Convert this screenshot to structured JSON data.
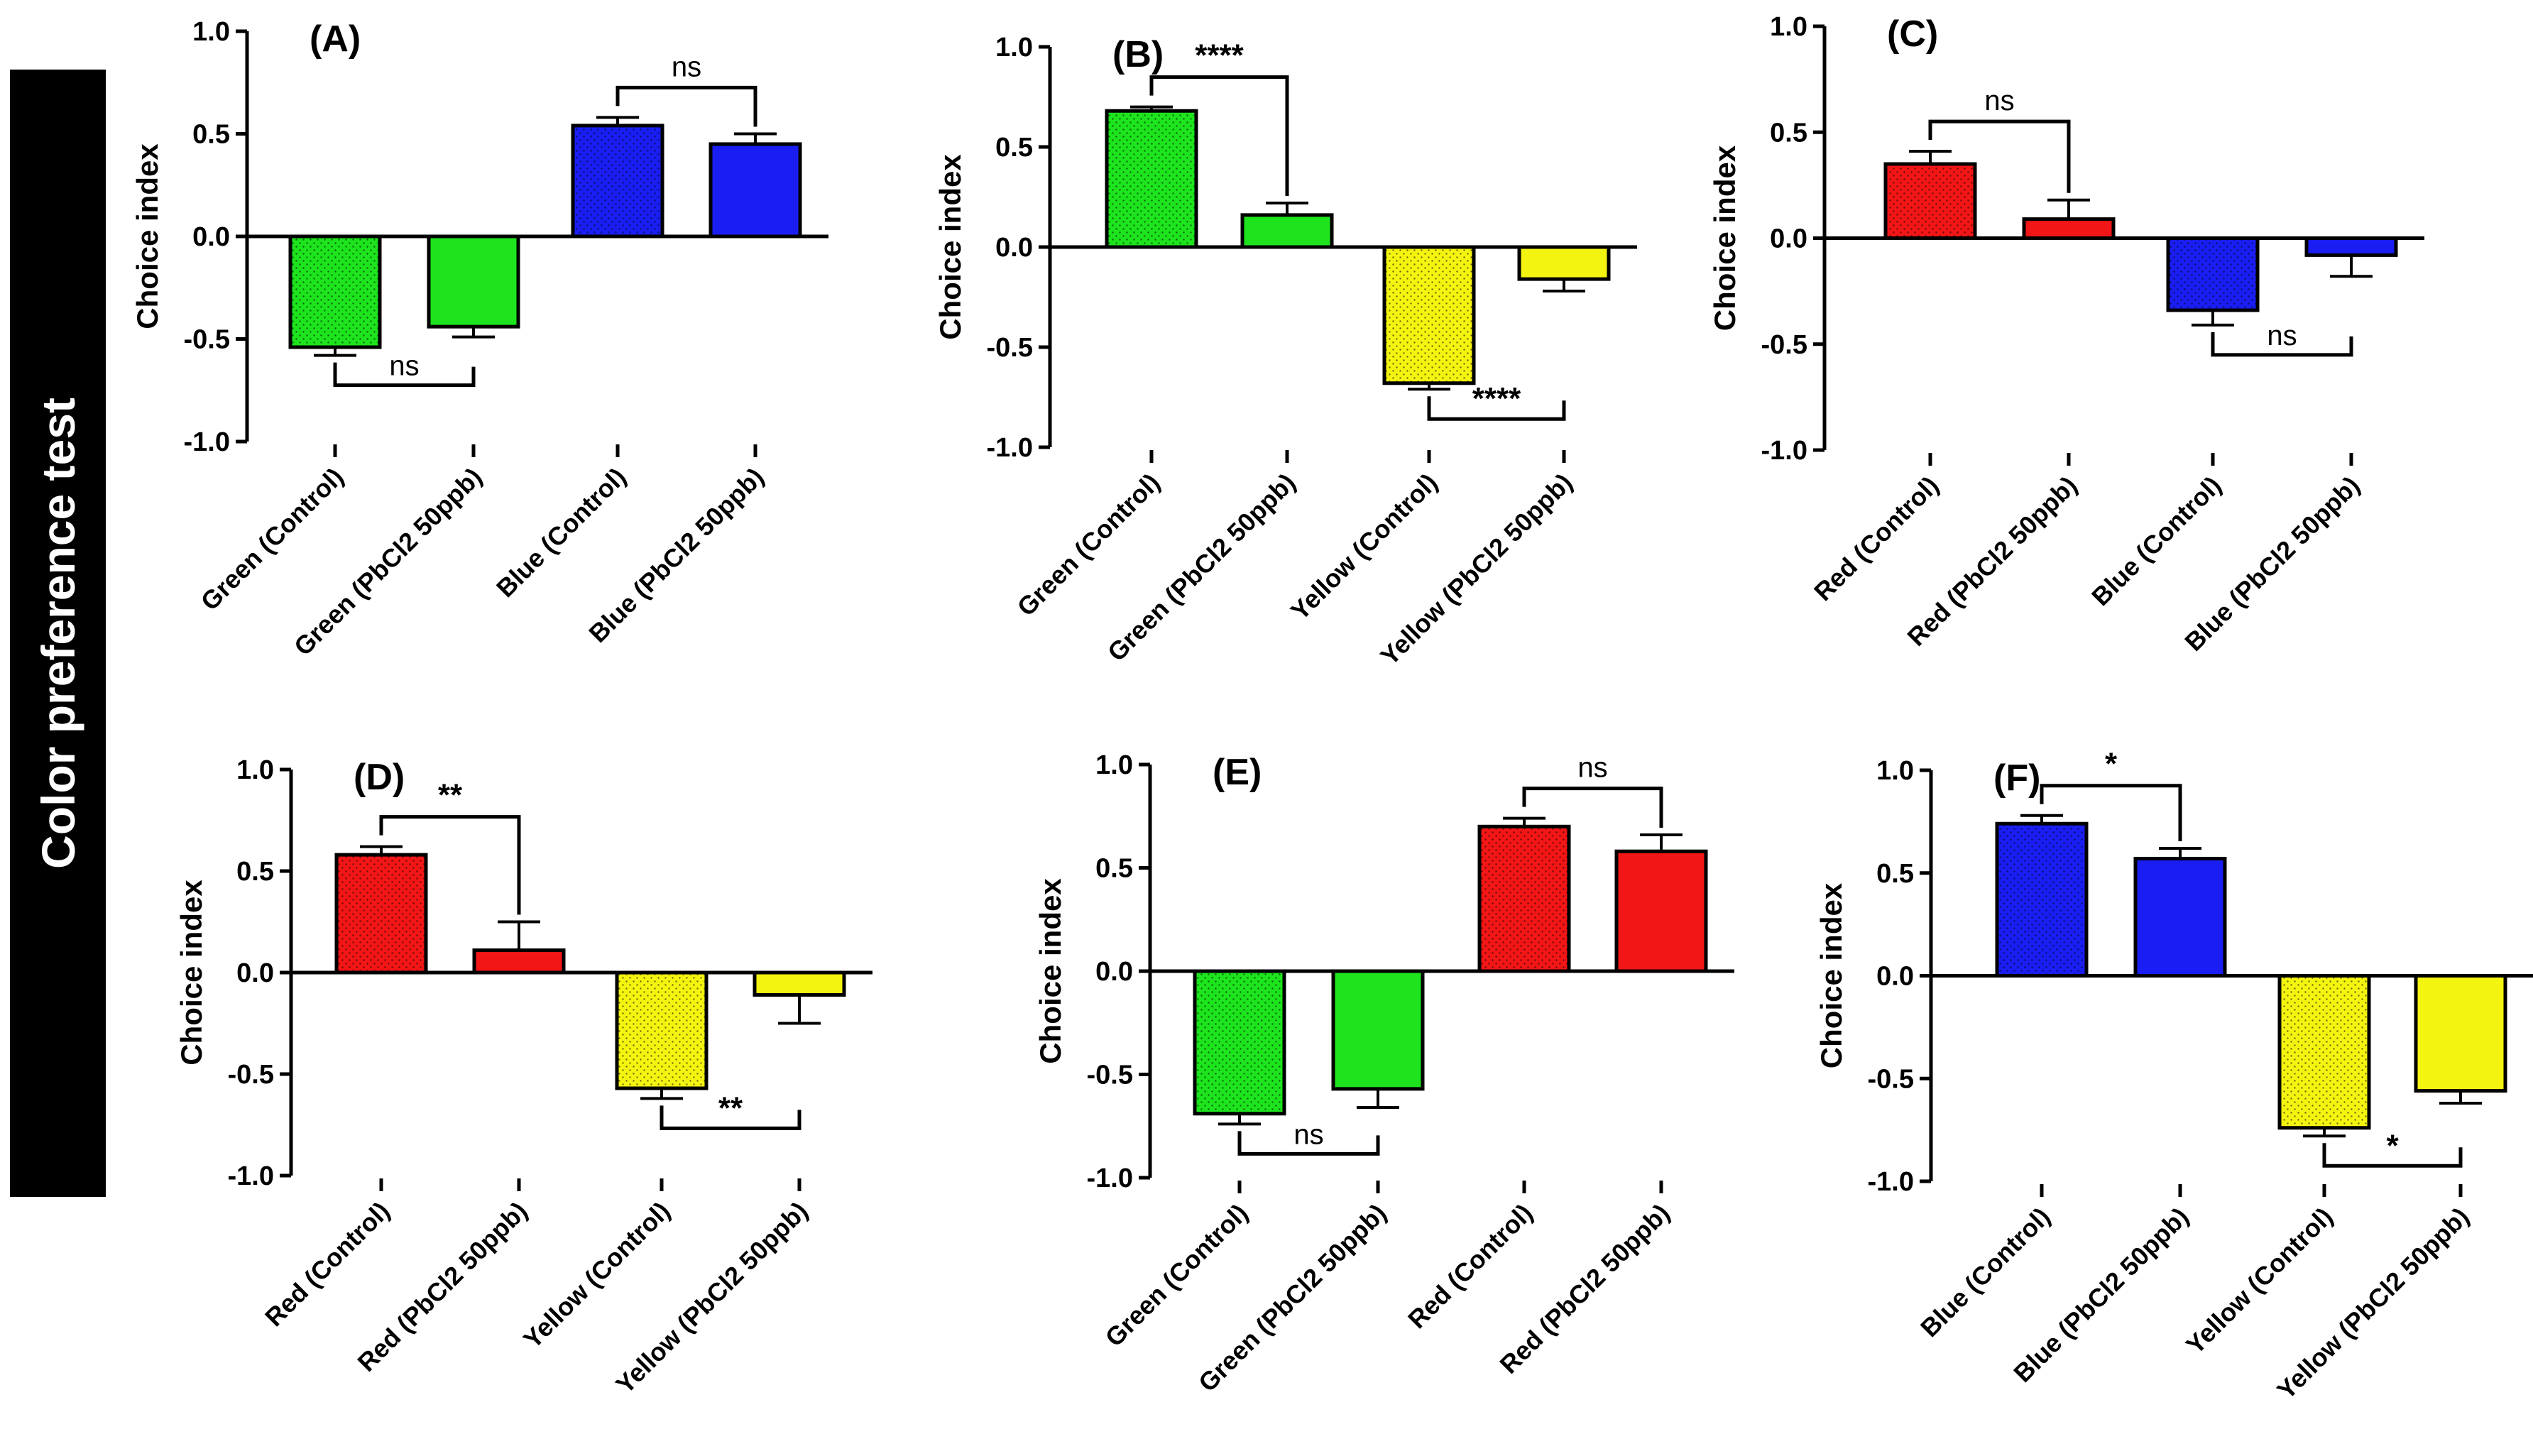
{
  "side_label": "Color preference test",
  "colors": {
    "green": "#1de41d",
    "blue": "#1a1ef2",
    "red": "#f21616",
    "yellow": "#f4f411",
    "axis": "#000000"
  },
  "chart_data": [
    {
      "type": "bar",
      "panel_label": "(A)",
      "ylabel": "Choice index",
      "ylim": [
        -1.0,
        1.0
      ],
      "yticks": [
        "-1.0",
        "-0.5",
        "0.0",
        "0.5",
        "1.0"
      ],
      "ytick_values": [
        -1.0,
        -0.5,
        0.0,
        0.5,
        1.0
      ],
      "categories": [
        "Green (Control)",
        "Green (PbCl2 50ppb)",
        "Blue (Control)",
        "Blue (PbCl2 50ppb)"
      ],
      "values": [
        -0.54,
        -0.44,
        0.54,
        0.45
      ],
      "errors": [
        0.04,
        0.05,
        0.04,
        0.05
      ],
      "bar_colors": [
        "green",
        "green",
        "blue",
        "blue"
      ],
      "dotted": [
        true,
        false,
        true,
        false
      ],
      "significance": [
        {
          "from": 0,
          "to": 1,
          "label": "ns",
          "position": "below"
        },
        {
          "from": 2,
          "to": 3,
          "label": "ns",
          "position": "above"
        }
      ]
    },
    {
      "type": "bar",
      "panel_label": "(B)",
      "ylabel": "Choice index",
      "ylim": [
        -1.0,
        1.0
      ],
      "yticks": [
        "-1.0",
        "-0.5",
        "0.0",
        "0.5",
        "1.0"
      ],
      "ytick_values": [
        -1.0,
        -0.5,
        0.0,
        0.5,
        1.0
      ],
      "categories": [
        "Green (Control)",
        "Green (PbCl2 50ppb)",
        "Yellow (Control)",
        "Yellow (PbCl2 50ppb)"
      ],
      "values": [
        0.68,
        0.16,
        -0.68,
        -0.16
      ],
      "errors": [
        0.02,
        0.06,
        0.03,
        0.06
      ],
      "bar_colors": [
        "green",
        "green",
        "yellow",
        "yellow"
      ],
      "dotted": [
        true,
        false,
        true,
        false
      ],
      "significance": [
        {
          "from": 0,
          "to": 1,
          "label": "****",
          "position": "above"
        },
        {
          "from": 2,
          "to": 3,
          "label": "****",
          "position": "below"
        }
      ]
    },
    {
      "type": "bar",
      "panel_label": "(C)",
      "ylabel": "Choice index",
      "ylim": [
        -1.0,
        1.0
      ],
      "yticks": [
        "-1.0",
        "-0.5",
        "0.0",
        "0.5",
        "1.0"
      ],
      "ytick_values": [
        -1.0,
        -0.5,
        0.0,
        0.5,
        1.0
      ],
      "categories": [
        "Red (Control)",
        "Red (PbCl2 50ppb)",
        "Blue (Control)",
        "Blue (PbCl2 50ppb)"
      ],
      "values": [
        0.35,
        0.09,
        -0.34,
        -0.08
      ],
      "errors": [
        0.06,
        0.09,
        0.07,
        0.1
      ],
      "bar_colors": [
        "red",
        "red",
        "blue",
        "blue"
      ],
      "dotted": [
        true,
        false,
        true,
        false
      ],
      "significance": [
        {
          "from": 0,
          "to": 1,
          "label": "ns",
          "position": "above"
        },
        {
          "from": 2,
          "to": 3,
          "label": "ns",
          "position": "below"
        }
      ]
    },
    {
      "type": "bar",
      "panel_label": "(D)",
      "ylabel": "Choice index",
      "ylim": [
        -1.0,
        1.0
      ],
      "yticks": [
        "-1.0",
        "-0.5",
        "0.0",
        "0.5",
        "1.0"
      ],
      "ytick_values": [
        -1.0,
        -0.5,
        0.0,
        0.5,
        1.0
      ],
      "categories": [
        "Red (Control)",
        "Red (PbCl2 50ppb)",
        "Yellow (Control)",
        "Yellow (PbCl2 50ppb)"
      ],
      "values": [
        0.58,
        0.11,
        -0.57,
        -0.11
      ],
      "errors": [
        0.04,
        0.14,
        0.05,
        0.14
      ],
      "bar_colors": [
        "red",
        "red",
        "yellow",
        "yellow"
      ],
      "dotted": [
        true,
        false,
        true,
        false
      ],
      "significance": [
        {
          "from": 0,
          "to": 1,
          "label": "**",
          "position": "above"
        },
        {
          "from": 2,
          "to": 3,
          "label": "**",
          "position": "below"
        }
      ]
    },
    {
      "type": "bar",
      "panel_label": "(E)",
      "ylabel": "Choice index",
      "ylim": [
        -1.0,
        1.0
      ],
      "yticks": [
        "-1.0",
        "-0.5",
        "0.0",
        "0.5",
        "1.0"
      ],
      "ytick_values": [
        -1.0,
        -0.5,
        0.0,
        0.5,
        1.0
      ],
      "categories": [
        "Green (Control)",
        "Green (PbCl2 50ppb)",
        "Red (Control)",
        "Red (PbCl2 50ppb)"
      ],
      "values": [
        -0.69,
        -0.57,
        0.7,
        0.58
      ],
      "errors": [
        0.05,
        0.09,
        0.04,
        0.08
      ],
      "bar_colors": [
        "green",
        "green",
        "red",
        "red"
      ],
      "dotted": [
        true,
        false,
        true,
        false
      ],
      "significance": [
        {
          "from": 0,
          "to": 1,
          "label": "ns",
          "position": "below"
        },
        {
          "from": 2,
          "to": 3,
          "label": "ns",
          "position": "above"
        }
      ]
    },
    {
      "type": "bar",
      "panel_label": "(F)",
      "ylabel": "Choice index",
      "ylim": [
        -1.0,
        1.0
      ],
      "yticks": [
        "-1.0",
        "-0.5",
        "0.0",
        "0.5",
        "1.0"
      ],
      "ytick_values": [
        -1.0,
        -0.5,
        0.0,
        0.5,
        1.0
      ],
      "categories": [
        "Blue (Control)",
        "Blue (PbCl2 50ppb)",
        "Yellow (Control)",
        "Yellow (PbCl2 50ppb)"
      ],
      "values": [
        0.74,
        0.57,
        -0.74,
        -0.56
      ],
      "errors": [
        0.04,
        0.05,
        0.04,
        0.06
      ],
      "bar_colors": [
        "blue",
        "blue",
        "yellow",
        "yellow"
      ],
      "dotted": [
        true,
        false,
        true,
        false
      ],
      "significance": [
        {
          "from": 0,
          "to": 1,
          "label": "*",
          "position": "above"
        },
        {
          "from": 2,
          "to": 3,
          "label": "*",
          "position": "below"
        }
      ]
    }
  ]
}
